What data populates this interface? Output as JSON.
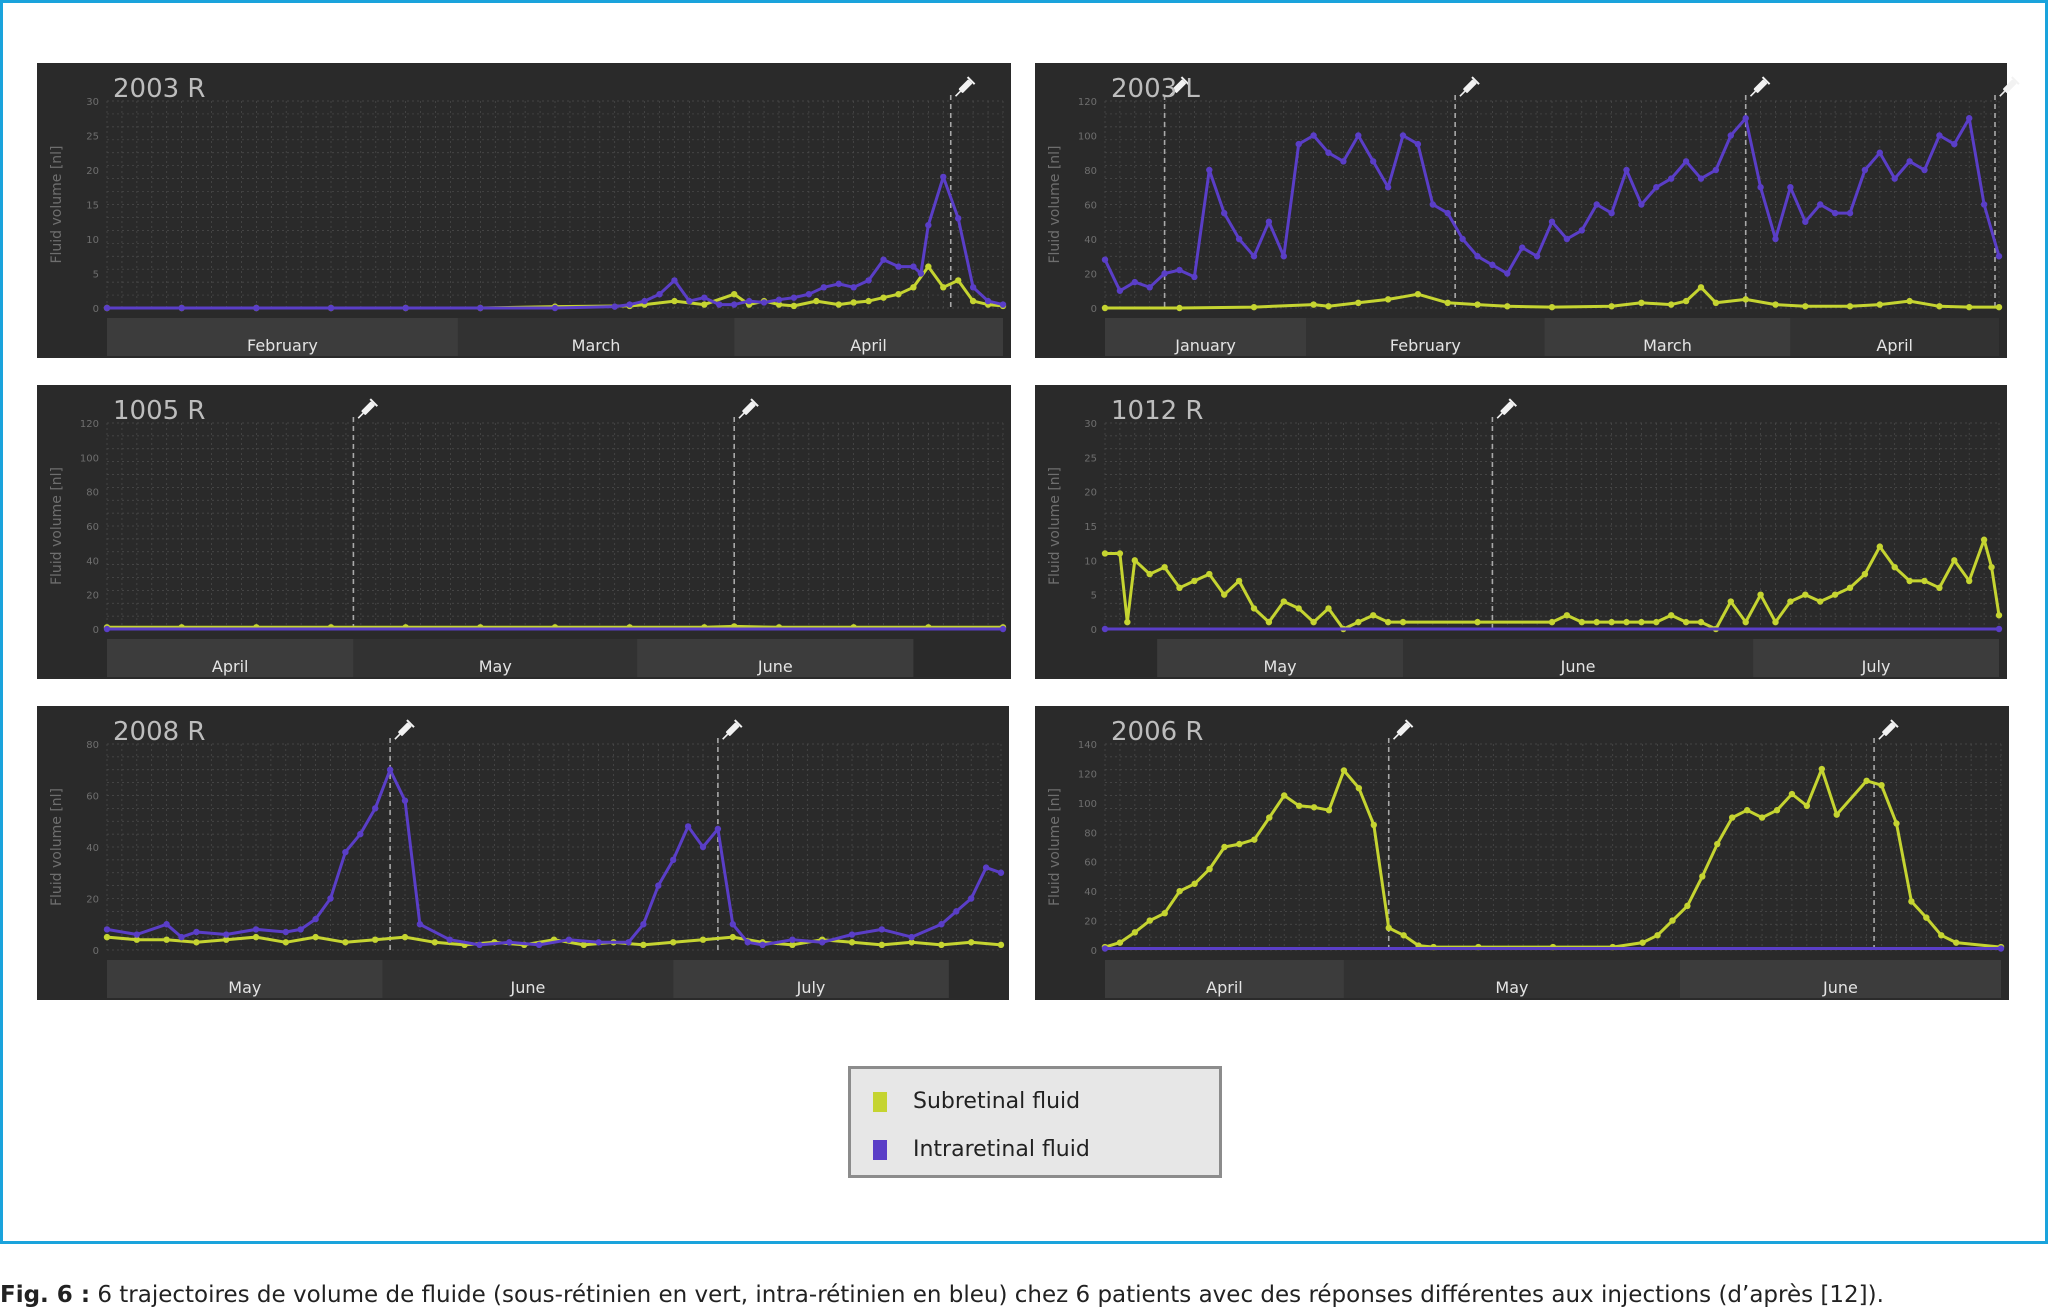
{
  "colors": {
    "subretinal": "#c5d431",
    "intraretinal": "#5a3ec7",
    "panel_bg": "#2a2a2a",
    "frame": "#1aa3dc"
  },
  "icons": {
    "injection_marker": "syringe-icon"
  },
  "chart_data": [
    {
      "type": "line",
      "title": "2003 R",
      "ylabel": "Fluid volume [nl]",
      "ylim": [
        0,
        30
      ],
      "yticks": [
        0,
        5,
        10,
        15,
        20,
        25,
        30
      ],
      "x_range": [
        0,
        120
      ],
      "months": [
        {
          "label": "February",
          "start": 0,
          "end": 47
        },
        {
          "label": "March",
          "start": 47,
          "end": 84
        },
        {
          "label": "April",
          "start": 84,
          "end": 120
        }
      ],
      "injections": [
        113
      ],
      "series": [
        {
          "name": "Subretinal fluid",
          "color": "#c5d431",
          "x": [
            0,
            10,
            20,
            30,
            40,
            50,
            60,
            70,
            72,
            76,
            80,
            84,
            86,
            88,
            90,
            92,
            95,
            98,
            100,
            102,
            104,
            106,
            108,
            110,
            112,
            114,
            116,
            118,
            120
          ],
          "y": [
            0,
            0,
            0,
            0,
            0,
            0,
            0.2,
            0.3,
            0.5,
            1,
            0.5,
            2,
            0.5,
            1,
            0.5,
            0.3,
            1,
            0.5,
            0.8,
            1,
            1.5,
            2,
            3,
            6,
            3,
            4,
            1,
            0.5,
            0.3
          ]
        },
        {
          "name": "Intraretinal fluid",
          "color": "#5a3ec7",
          "x": [
            0,
            10,
            20,
            30,
            40,
            50,
            60,
            68,
            70,
            72,
            74,
            76,
            78,
            80,
            82,
            84,
            86,
            88,
            90,
            92,
            94,
            96,
            98,
            100,
            102,
            104,
            106,
            108,
            109,
            110,
            112,
            114,
            116,
            118,
            120
          ],
          "y": [
            0,
            0,
            0,
            0,
            0,
            0,
            0,
            0.2,
            0.5,
            1,
            2,
            4,
            1,
            1.5,
            0.5,
            0.5,
            1,
            0.8,
            1.2,
            1.5,
            2,
            3,
            3.5,
            3,
            4,
            7,
            6,
            6,
            5,
            12,
            19,
            13,
            3,
            1,
            0.5
          ]
        }
      ]
    },
    {
      "type": "line",
      "title": "2003 L",
      "ylabel": "Fluid volume [nl]",
      "ylim": [
        0,
        120
      ],
      "yticks": [
        0,
        20,
        40,
        60,
        80,
        100,
        120
      ],
      "x_range": [
        0,
        120
      ],
      "months": [
        {
          "label": "January",
          "start": 0,
          "end": 27
        },
        {
          "label": "February",
          "start": 27,
          "end": 59
        },
        {
          "label": "March",
          "start": 59,
          "end": 92
        },
        {
          "label": "April",
          "start": 92,
          "end": 120
        }
      ],
      "injections": [
        8,
        47,
        86,
        123
      ],
      "series": [
        {
          "name": "Subretinal fluid",
          "color": "#c5d431",
          "x": [
            0,
            10,
            20,
            28,
            30,
            34,
            38,
            42,
            46,
            50,
            54,
            60,
            68,
            72,
            76,
            78,
            80,
            82,
            86,
            90,
            94,
            100,
            104,
            108,
            112,
            116,
            120
          ],
          "y": [
            0,
            0,
            0.5,
            2,
            1,
            3,
            5,
            8,
            3,
            2,
            1,
            0.5,
            1,
            3,
            2,
            4,
            12,
            3,
            5,
            2,
            1,
            1,
            2,
            4,
            1,
            0.5,
            0.5
          ]
        },
        {
          "name": "Intraretinal fluid",
          "color": "#5a3ec7",
          "x": [
            0,
            2,
            4,
            6,
            8,
            10,
            12,
            14,
            16,
            18,
            20,
            22,
            24,
            26,
            28,
            30,
            32,
            34,
            36,
            38,
            40,
            42,
            44,
            46,
            48,
            50,
            52,
            54,
            56,
            58,
            60,
            62,
            64,
            66,
            68,
            70,
            72,
            74,
            76,
            78,
            80,
            82,
            84,
            86,
            88,
            90,
            92,
            94,
            96,
            98,
            100,
            102,
            104,
            106,
            108,
            110,
            112,
            114,
            116,
            118,
            120
          ],
          "y": [
            28,
            10,
            15,
            12,
            20,
            22,
            18,
            80,
            55,
            40,
            30,
            50,
            30,
            95,
            100,
            90,
            85,
            100,
            85,
            70,
            100,
            95,
            60,
            55,
            40,
            30,
            25,
            20,
            35,
            30,
            50,
            40,
            45,
            60,
            55,
            80,
            60,
            70,
            75,
            85,
            75,
            80,
            100,
            110,
            70,
            40,
            70,
            50,
            60,
            55,
            55,
            80,
            90,
            75,
            85,
            80,
            100,
            95,
            110,
            60,
            30
          ]
        }
      ]
    },
    {
      "type": "line",
      "title": "1005 R",
      "ylabel": "Fluid volume [nl]",
      "ylim": [
        0,
        120
      ],
      "yticks": [
        0,
        20,
        40,
        60,
        80,
        100,
        120
      ],
      "x_range": [
        0,
        120
      ],
      "months": [
        {
          "label": "April",
          "start": 0,
          "end": 33
        },
        {
          "label": "May",
          "start": 33,
          "end": 71
        },
        {
          "label": "June",
          "start": 71,
          "end": 108
        }
      ],
      "injections": [
        33,
        84
      ],
      "series": [
        {
          "name": "Subretinal fluid",
          "color": "#c5d431",
          "x": [
            0,
            10,
            20,
            30,
            40,
            50,
            60,
            70,
            80,
            84,
            90,
            100,
            110,
            120
          ],
          "y": [
            1,
            1,
            1,
            1,
            1,
            1,
            1,
            1,
            1,
            1.5,
            1,
            1,
            1,
            1
          ]
        },
        {
          "name": "Intraretinal fluid",
          "color": "#5a3ec7",
          "x": [
            0,
            120
          ],
          "y": [
            0,
            0
          ]
        }
      ]
    },
    {
      "type": "line",
      "title": "1012 R",
      "ylabel": "Fluid volume [nl]",
      "ylim": [
        0,
        30
      ],
      "yticks": [
        0,
        5,
        10,
        15,
        20,
        25,
        30
      ],
      "x_range": [
        0,
        120
      ],
      "months": [
        {
          "label": "May",
          "start": 7,
          "end": 40
        },
        {
          "label": "June",
          "start": 40,
          "end": 87
        },
        {
          "label": "July",
          "start": 87,
          "end": 120
        }
      ],
      "injections": [
        52
      ],
      "series": [
        {
          "name": "Subretinal fluid",
          "color": "#c5d431",
          "x": [
            0,
            2,
            3,
            4,
            6,
            8,
            10,
            12,
            14,
            16,
            18,
            20,
            22,
            24,
            26,
            28,
            30,
            32,
            34,
            36,
            38,
            40,
            50,
            60,
            62,
            64,
            66,
            68,
            70,
            72,
            74,
            76,
            78,
            80,
            82,
            84,
            86,
            88,
            90,
            92,
            94,
            96,
            98,
            100,
            102,
            104,
            106,
            108,
            110,
            112,
            114,
            116,
            118,
            119,
            120
          ],
          "y": [
            11,
            11,
            1,
            10,
            8,
            9,
            6,
            7,
            8,
            5,
            7,
            3,
            1,
            4,
            3,
            1,
            3,
            0,
            1,
            2,
            1,
            1,
            1,
            1,
            2,
            1,
            1,
            1,
            1,
            1,
            1,
            2,
            1,
            1,
            0,
            4,
            1,
            5,
            1,
            4,
            5,
            4,
            5,
            6,
            8,
            12,
            9,
            7,
            7,
            6,
            10,
            7,
            13,
            9,
            2
          ]
        },
        {
          "name": "Intraretinal fluid",
          "color": "#5a3ec7",
          "x": [
            0,
            120
          ],
          "y": [
            0,
            0
          ]
        }
      ]
    },
    {
      "type": "line",
      "title": "2008 R",
      "ylabel": "Fluid volume [nl]",
      "ylim": [
        0,
        80
      ],
      "yticks": [
        0,
        20,
        40,
        60,
        80
      ],
      "x_range": [
        0,
        120
      ],
      "months": [
        {
          "label": "May",
          "start": 0,
          "end": 37
        },
        {
          "label": "June",
          "start": 37,
          "end": 76
        },
        {
          "label": "July",
          "start": 76,
          "end": 113
        }
      ],
      "injections": [
        38,
        82
      ],
      "series": [
        {
          "name": "Subretinal fluid",
          "color": "#c5d431",
          "x": [
            0,
            4,
            8,
            12,
            16,
            20,
            24,
            28,
            32,
            36,
            40,
            44,
            48,
            52,
            56,
            60,
            64,
            68,
            72,
            76,
            80,
            84,
            88,
            92,
            96,
            100,
            104,
            108,
            112,
            116,
            120
          ],
          "y": [
            5,
            4,
            4,
            3,
            4,
            5,
            3,
            5,
            3,
            4,
            5,
            3,
            2,
            3,
            2,
            4,
            2,
            3,
            2,
            3,
            4,
            5,
            3,
            2,
            4,
            3,
            2,
            3,
            2,
            3,
            2
          ]
        },
        {
          "name": "Intraretinal fluid",
          "color": "#5a3ec7",
          "x": [
            0,
            4,
            8,
            10,
            12,
            16,
            20,
            24,
            26,
            28,
            30,
            32,
            34,
            36,
            38,
            40,
            42,
            46,
            50,
            54,
            58,
            62,
            66,
            70,
            72,
            74,
            76,
            78,
            80,
            82,
            84,
            86,
            88,
            92,
            96,
            100,
            104,
            108,
            112,
            114,
            116,
            118,
            120
          ],
          "y": [
            8,
            6,
            10,
            5,
            7,
            6,
            8,
            7,
            8,
            12,
            20,
            38,
            45,
            55,
            70,
            58,
            10,
            4,
            2,
            3,
            2,
            4,
            3,
            3,
            10,
            25,
            35,
            48,
            40,
            47,
            10,
            3,
            2,
            4,
            3,
            6,
            8,
            5,
            10,
            15,
            20,
            32,
            30
          ]
        }
      ]
    },
    {
      "type": "line",
      "title": "2006 R",
      "ylabel": "Fluid volume [nl]",
      "ylim": [
        0,
        140
      ],
      "yticks": [
        0,
        20,
        40,
        60,
        80,
        100,
        120,
        140
      ],
      "x_range": [
        0,
        120
      ],
      "months": [
        {
          "label": "April",
          "start": 0,
          "end": 32
        },
        {
          "label": "May",
          "start": 32,
          "end": 77
        },
        {
          "label": "June",
          "start": 77,
          "end": 120
        }
      ],
      "injections": [
        38,
        103
      ],
      "series": [
        {
          "name": "Subretinal fluid",
          "color": "#c5d431",
          "x": [
            0,
            2,
            4,
            6,
            8,
            10,
            12,
            14,
            16,
            18,
            20,
            22,
            24,
            26,
            28,
            30,
            32,
            34,
            36,
            38,
            40,
            42,
            44,
            50,
            60,
            68,
            72,
            74,
            76,
            78,
            80,
            82,
            84,
            86,
            88,
            90,
            92,
            94,
            96,
            98,
            102,
            104,
            106,
            108,
            110,
            112,
            114,
            120
          ],
          "y": [
            2,
            5,
            12,
            20,
            25,
            40,
            45,
            55,
            70,
            72,
            75,
            90,
            105,
            98,
            97,
            95,
            122,
            110,
            85,
            15,
            10,
            3,
            2,
            2,
            2,
            2,
            5,
            10,
            20,
            30,
            50,
            72,
            90,
            95,
            90,
            95,
            106,
            98,
            123,
            92,
            115,
            112,
            86,
            33,
            22,
            10,
            5,
            2
          ]
        },
        {
          "name": "Intraretinal fluid",
          "color": "#5a3ec7",
          "x": [
            0,
            120
          ],
          "y": [
            1,
            1
          ]
        }
      ]
    }
  ],
  "legend": [
    {
      "label": "Subretinal fluid",
      "color": "#c5d431"
    },
    {
      "label": "Intraretinal fluid",
      "color": "#5a3ec7"
    }
  ],
  "caption": {
    "prefix": "Fig. 6 :",
    "text": " 6 trajectoires de volume de fluide (sous-rétinien en vert, intra-rétinien en bleu) chez 6 patients avec des réponses différentes aux injections (d’après [12])."
  }
}
